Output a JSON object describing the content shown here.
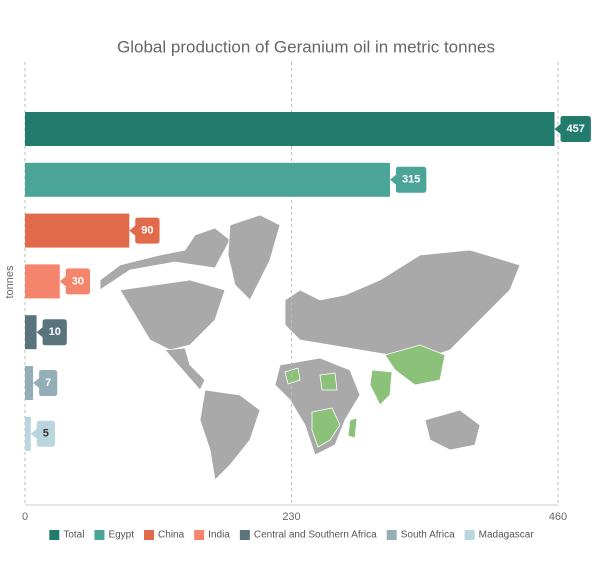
{
  "chart_data": {
    "type": "bar",
    "orientation": "horizontal",
    "title": "Global production of Geranium oil in metric tonnes",
    "y_label": "tonnes",
    "xlim": [
      0,
      460
    ],
    "xticks": [
      0,
      230,
      460
    ],
    "grid": true,
    "series": [
      {
        "name": "Total",
        "color": "#237b6d",
        "values": [
          457
        ]
      },
      {
        "name": "Egypt",
        "color": "#4aa598",
        "values": [
          315
        ]
      },
      {
        "name": "China",
        "color": "#e06a4a",
        "values": [
          90
        ]
      },
      {
        "name": "India",
        "color": "#f5846c",
        "values": [
          30
        ]
      },
      {
        "name": "Central and Southern Africa",
        "color": "#5a747e",
        "values": [
          10
        ]
      },
      {
        "name": "South Africa",
        "color": "#94aeb8",
        "values": [
          7
        ]
      },
      {
        "name": "Madagascar",
        "color": "#b9d6de",
        "values": [
          5
        ]
      }
    ]
  }
}
